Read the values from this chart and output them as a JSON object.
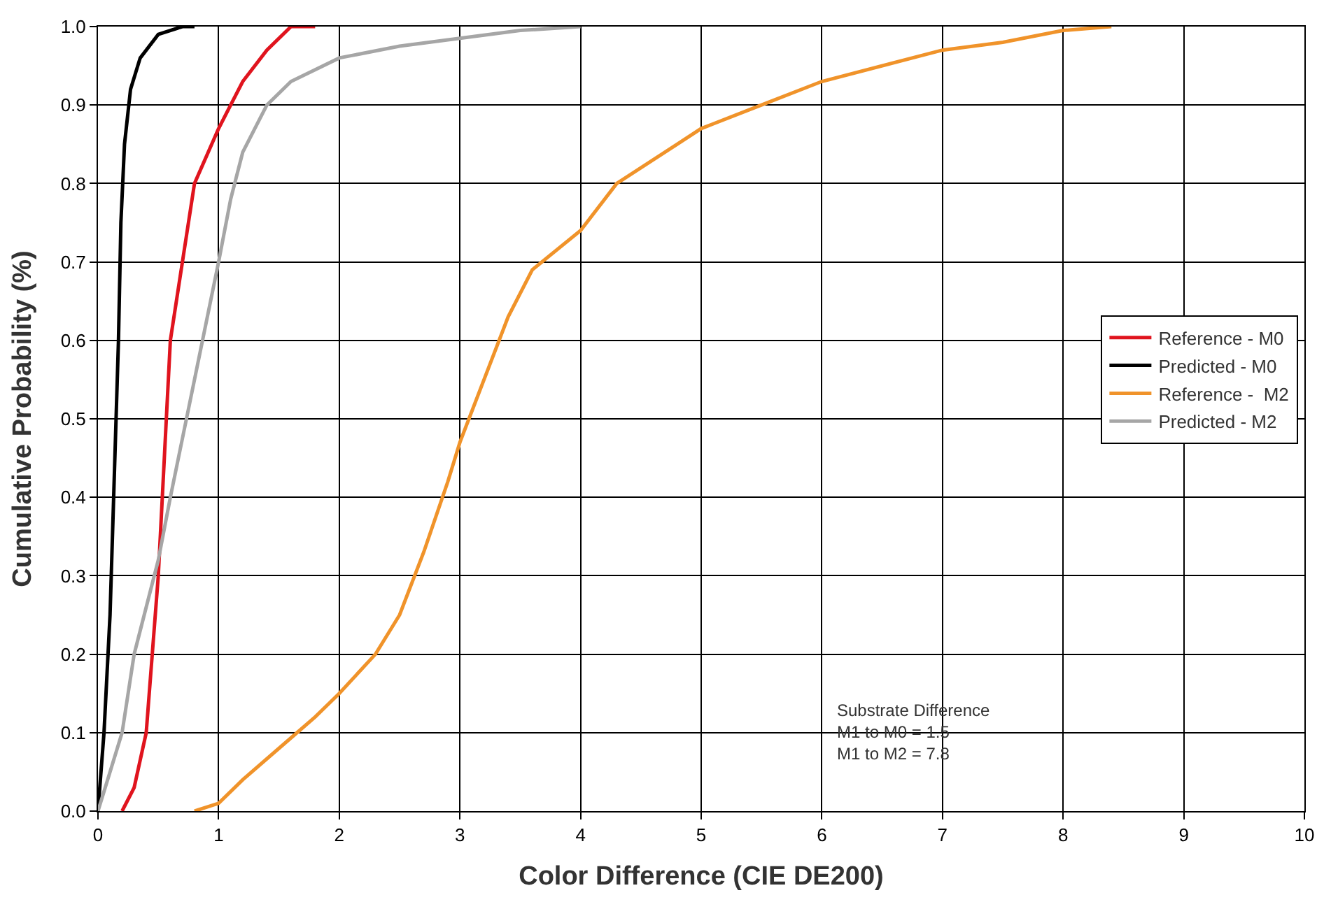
{
  "chart_data": {
    "type": "line",
    "xlabel": "Color Difference (CIE DE200)",
    "ylabel": "Cumulative Probability (%)",
    "xlim": [
      0,
      10
    ],
    "xticks": [
      0,
      1,
      2,
      3,
      4,
      5,
      6,
      7,
      8,
      9,
      10
    ],
    "ylim": [
      0,
      1
    ],
    "yticks": [
      {
        "value": 0,
        "label": "0.0"
      },
      {
        "value": 0.1,
        "label": "0.1"
      },
      {
        "value": 0.2,
        "label": "0.2"
      },
      {
        "value": 0.3,
        "label": "0.3"
      },
      {
        "value": 0.4,
        "label": "0.4"
      },
      {
        "value": 0.5,
        "label": "0.5"
      },
      {
        "value": 0.6,
        "label": "0.6"
      },
      {
        "value": 0.7,
        "label": "0.7"
      },
      {
        "value": 0.8,
        "label": "0.8"
      },
      {
        "value": 0.9,
        "label": "0.9"
      },
      {
        "value": 1,
        "label": "1.0"
      }
    ],
    "grid": true,
    "legend": "right",
    "marker": "none",
    "line_style": "solid",
    "series": [
      {
        "name": "Reference - M0",
        "color": "#e0141e",
        "x": [
          0.2,
          0.3,
          0.4,
          0.45,
          0.5,
          0.55,
          0.6,
          0.7,
          0.8,
          1.0,
          1.1,
          1.2,
          1.4,
          1.6,
          1.8
        ],
        "values": [
          0,
          0.03,
          0.1,
          0.2,
          0.3,
          0.45,
          0.6,
          0.7,
          0.8,
          0.87,
          0.9,
          0.93,
          0.97,
          1.0,
          1.0
        ]
      },
      {
        "name": "Predicted - M0",
        "color": "#000000",
        "x": [
          0,
          0.05,
          0.1,
          0.13,
          0.17,
          0.19,
          0.22,
          0.27,
          0.35,
          0.5,
          0.7,
          0.8
        ],
        "values": [
          0,
          0.1,
          0.25,
          0.4,
          0.6,
          0.75,
          0.85,
          0.92,
          0.96,
          0.99,
          1.0,
          1.0
        ]
      },
      {
        "name": "Reference -  M2",
        "color": "#f0932a",
        "x": [
          0.8,
          1.0,
          1.2,
          1.5,
          1.8,
          2.0,
          2.3,
          2.5,
          2.7,
          2.9,
          3.0,
          3.2,
          3.4,
          3.6,
          4.0,
          4.3,
          4.8,
          5.0,
          5.5,
          6.0,
          7.0,
          7.5,
          8.0,
          8.4
        ],
        "values": [
          0,
          0.01,
          0.04,
          0.08,
          0.12,
          0.15,
          0.2,
          0.25,
          0.33,
          0.42,
          0.47,
          0.55,
          0.63,
          0.69,
          0.74,
          0.8,
          0.85,
          0.87,
          0.9,
          0.93,
          0.97,
          0.98,
          0.995,
          1.0
        ]
      },
      {
        "name": "Predicted - M2",
        "color": "#a6a6a6",
        "x": [
          0,
          0.1,
          0.2,
          0.3,
          0.5,
          0.6,
          0.8,
          1.0,
          1.1,
          1.2,
          1.4,
          1.6,
          2.0,
          2.5,
          3.0,
          3.5,
          4.0
        ],
        "values": [
          0,
          0.05,
          0.1,
          0.2,
          0.32,
          0.4,
          0.55,
          0.7,
          0.78,
          0.84,
          0.9,
          0.93,
          0.96,
          0.975,
          0.985,
          0.995,
          1.0
        ]
      }
    ],
    "annotations": [
      "Substrate Difference\nM1 to M0 = 1.5\nM1 to M2 = 7.8"
    ]
  }
}
